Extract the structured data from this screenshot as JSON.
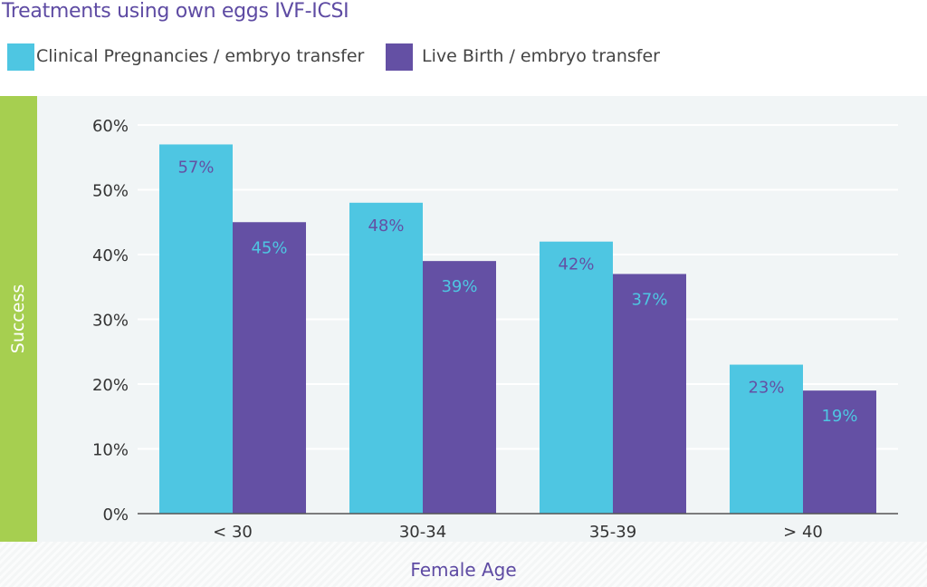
{
  "colors": {
    "title": "#5e4ba3",
    "series1": "#4ec6e2",
    "series2": "#6450a4",
    "ylabel_band": "#a6cf50",
    "plot_background": "#f1f5f6",
    "gridline": "#ffffff"
  },
  "chart_data": {
    "type": "bar",
    "title": "Treatments using own eggs IVF-ICSI",
    "xlabel": "Female Age",
    "ylabel": "Success",
    "categories": [
      "< 30",
      "30-34",
      "35-39",
      "> 40"
    ],
    "series": [
      {
        "name": "Clinical Pregnancies / embryo transfer",
        "values": [
          57,
          48,
          42,
          23
        ],
        "value_labels": [
          "57%",
          "48%",
          "42%",
          "23%"
        ],
        "color": "#4ec6e2"
      },
      {
        "name": "Live Birth / embryo transfer",
        "values": [
          45,
          39,
          37,
          19
        ],
        "value_labels": [
          "45%",
          "39%",
          "37%",
          "19%"
        ],
        "color": "#6450a4"
      }
    ],
    "yticks": [
      "0%",
      "10%",
      "20%",
      "30%",
      "40%",
      "50%",
      "60%"
    ],
    "ylim": [
      0,
      60
    ],
    "grid": true,
    "legend": "top-left"
  }
}
